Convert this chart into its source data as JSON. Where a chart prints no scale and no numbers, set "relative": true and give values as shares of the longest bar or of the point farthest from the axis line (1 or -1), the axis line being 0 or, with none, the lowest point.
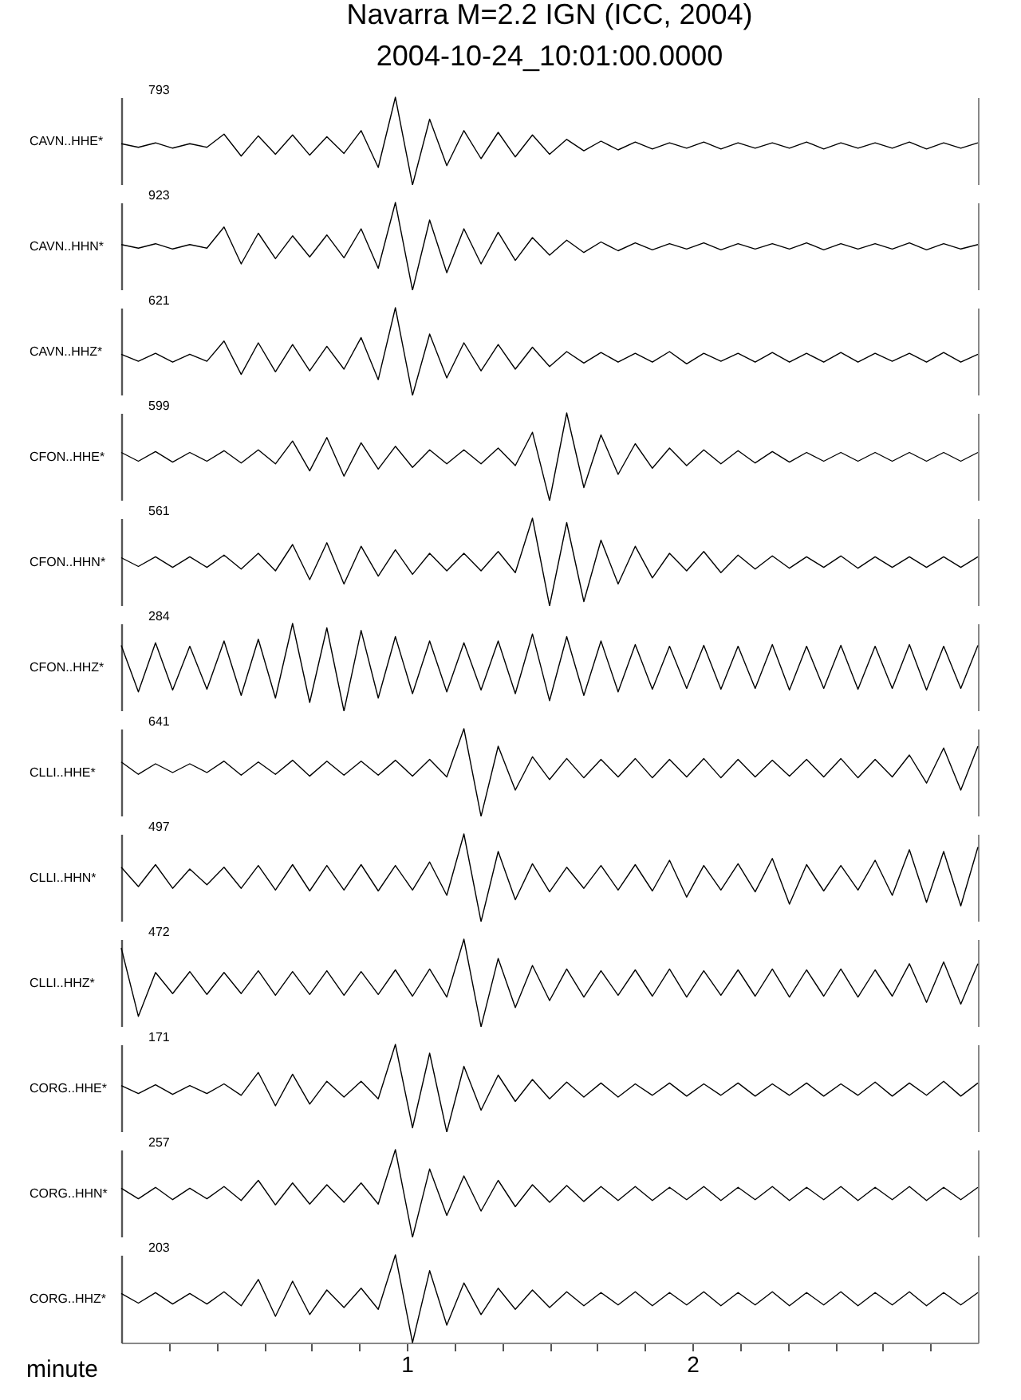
{
  "chart_data": [
    {
      "type": "line",
      "title": "Navarra  M=2.2 IGN (ICC, 2004)",
      "subtitle": "2004-10-24_10:01:00.0000",
      "ylabel": "CAVN..HHE*",
      "annotations": [
        "793"
      ],
      "relative": true,
      "xlim": [
        0,
        3
      ],
      "tick_labels": false,
      "x": [
        0,
        0.06,
        0.12,
        0.18,
        0.24,
        0.3,
        0.36,
        0.42,
        0.48,
        0.54,
        0.6,
        0.66,
        0.72,
        0.78,
        0.84,
        0.9,
        0.96,
        1.02,
        1.08,
        1.14,
        1.2,
        1.26,
        1.32,
        1.38,
        1.44,
        1.5,
        1.56,
        1.62,
        1.68,
        1.74,
        1.8,
        1.86,
        1.92,
        1.98,
        2.04,
        2.1,
        2.16,
        2.22,
        2.28,
        2.34,
        2.4,
        2.46,
        2.52,
        2.58,
        2.64,
        2.7,
        2.76,
        2.82,
        2.88,
        2.94,
        3
      ],
      "series": [
        {
          "color": "#000000",
          "values": [
            0.47,
            0.43,
            0.48,
            0.42,
            0.47,
            0.43,
            0.58,
            0.33,
            0.56,
            0.35,
            0.57,
            0.34,
            0.55,
            0.36,
            0.62,
            0.2,
            1,
            0,
            0.75,
            0.22,
            0.62,
            0.3,
            0.6,
            0.32,
            0.57,
            0.35,
            0.52,
            0.39,
            0.5,
            0.4,
            0.49,
            0.41,
            0.48,
            0.42,
            0.49,
            0.41,
            0.48,
            0.42,
            0.48,
            0.42,
            0.49,
            0.41,
            0.48,
            0.42,
            0.48,
            0.42,
            0.49,
            0.41,
            0.48,
            0.42,
            0.48
          ]
        }
      ]
    },
    {
      "type": "line",
      "ylabel": "CAVN..HHN*",
      "annotations": [
        "923"
      ],
      "relative": true,
      "xlim": [
        0,
        3
      ],
      "tick_labels": false,
      "x": [
        0,
        0.06,
        0.12,
        0.18,
        0.24,
        0.3,
        0.36,
        0.42,
        0.48,
        0.54,
        0.6,
        0.66,
        0.72,
        0.78,
        0.84,
        0.9,
        0.96,
        1.02,
        1.08,
        1.14,
        1.2,
        1.26,
        1.32,
        1.38,
        1.44,
        1.5,
        1.56,
        1.62,
        1.68,
        1.74,
        1.8,
        1.86,
        1.92,
        1.98,
        2.04,
        2.1,
        2.16,
        2.22,
        2.28,
        2.34,
        2.4,
        2.46,
        2.52,
        2.58,
        2.64,
        2.7,
        2.76,
        2.82,
        2.88,
        2.94,
        3
      ],
      "series": [
        {
          "color": "#000000",
          "values": [
            0.52,
            0.48,
            0.53,
            0.47,
            0.52,
            0.48,
            0.72,
            0.3,
            0.65,
            0.36,
            0.62,
            0.38,
            0.63,
            0.37,
            0.7,
            0.25,
            1,
            0,
            0.8,
            0.2,
            0.7,
            0.3,
            0.66,
            0.34,
            0.6,
            0.4,
            0.57,
            0.43,
            0.55,
            0.45,
            0.54,
            0.46,
            0.53,
            0.47,
            0.54,
            0.46,
            0.53,
            0.47,
            0.53,
            0.47,
            0.54,
            0.46,
            0.53,
            0.47,
            0.53,
            0.47,
            0.54,
            0.46,
            0.53,
            0.47,
            0.52
          ]
        }
      ]
    },
    {
      "type": "line",
      "ylabel": "CAVN..HHZ*",
      "annotations": [
        "621"
      ],
      "relative": true,
      "xlim": [
        0,
        3
      ],
      "tick_labels": false,
      "x": [
        0,
        0.06,
        0.12,
        0.18,
        0.24,
        0.3,
        0.36,
        0.42,
        0.48,
        0.54,
        0.6,
        0.66,
        0.72,
        0.78,
        0.84,
        0.9,
        0.96,
        1.02,
        1.08,
        1.14,
        1.2,
        1.26,
        1.32,
        1.38,
        1.44,
        1.5,
        1.56,
        1.62,
        1.68,
        1.74,
        1.8,
        1.86,
        1.92,
        1.98,
        2.04,
        2.1,
        2.16,
        2.22,
        2.28,
        2.34,
        2.4,
        2.46,
        2.52,
        2.58,
        2.64,
        2.7,
        2.76,
        2.82,
        2.88,
        2.94,
        3
      ],
      "series": [
        {
          "color": "#000000",
          "values": [
            0.47,
            0.39,
            0.48,
            0.38,
            0.47,
            0.39,
            0.62,
            0.24,
            0.6,
            0.27,
            0.58,
            0.28,
            0.56,
            0.3,
            0.66,
            0.18,
            1,
            0,
            0.7,
            0.2,
            0.6,
            0.28,
            0.58,
            0.3,
            0.55,
            0.33,
            0.5,
            0.37,
            0.49,
            0.38,
            0.48,
            0.38,
            0.5,
            0.36,
            0.48,
            0.39,
            0.48,
            0.38,
            0.49,
            0.38,
            0.48,
            0.38,
            0.49,
            0.38,
            0.48,
            0.39,
            0.48,
            0.38,
            0.49,
            0.38,
            0.47
          ]
        }
      ]
    },
    {
      "type": "line",
      "ylabel": "CFON..HHE*",
      "annotations": [
        "599"
      ],
      "relative": true,
      "xlim": [
        0,
        3
      ],
      "tick_labels": false,
      "x": [
        0,
        0.06,
        0.12,
        0.18,
        0.24,
        0.3,
        0.36,
        0.42,
        0.48,
        0.54,
        0.6,
        0.66,
        0.72,
        0.78,
        0.84,
        0.9,
        0.96,
        1.02,
        1.08,
        1.14,
        1.2,
        1.26,
        1.32,
        1.38,
        1.44,
        1.5,
        1.56,
        1.62,
        1.68,
        1.74,
        1.8,
        1.86,
        1.92,
        1.98,
        2.04,
        2.1,
        2.16,
        2.22,
        2.28,
        2.34,
        2.4,
        2.46,
        2.52,
        2.58,
        2.64,
        2.7,
        2.76,
        2.82,
        2.88,
        2.94,
        3
      ],
      "series": [
        {
          "color": "#000000",
          "values": [
            0.55,
            0.45,
            0.56,
            0.44,
            0.55,
            0.45,
            0.57,
            0.43,
            0.58,
            0.42,
            0.68,
            0.34,
            0.72,
            0.28,
            0.66,
            0.36,
            0.62,
            0.38,
            0.58,
            0.42,
            0.58,
            0.42,
            0.6,
            0.4,
            0.78,
            0,
            1,
            0.15,
            0.75,
            0.3,
            0.65,
            0.37,
            0.6,
            0.4,
            0.58,
            0.42,
            0.57,
            0.43,
            0.56,
            0.44,
            0.55,
            0.45,
            0.55,
            0.45,
            0.55,
            0.45,
            0.55,
            0.45,
            0.55,
            0.45,
            0.55
          ]
        }
      ]
    },
    {
      "type": "line",
      "ylabel": "CFON..HHN*",
      "annotations": [
        "561"
      ],
      "relative": true,
      "xlim": [
        0,
        3
      ],
      "tick_labels": false,
      "x": [
        0,
        0.06,
        0.12,
        0.18,
        0.24,
        0.3,
        0.36,
        0.42,
        0.48,
        0.54,
        0.6,
        0.66,
        0.72,
        0.78,
        0.84,
        0.9,
        0.96,
        1.02,
        1.08,
        1.14,
        1.2,
        1.26,
        1.32,
        1.38,
        1.44,
        1.5,
        1.56,
        1.62,
        1.68,
        1.74,
        1.8,
        1.86,
        1.92,
        1.98,
        2.04,
        2.1,
        2.16,
        2.22,
        2.28,
        2.34,
        2.4,
        2.46,
        2.52,
        2.58,
        2.64,
        2.7,
        2.76,
        2.82,
        2.88,
        2.94,
        3
      ],
      "series": [
        {
          "color": "#000000",
          "values": [
            0.55,
            0.45,
            0.56,
            0.44,
            0.56,
            0.44,
            0.58,
            0.42,
            0.6,
            0.4,
            0.7,
            0.3,
            0.72,
            0.25,
            0.68,
            0.34,
            0.64,
            0.36,
            0.6,
            0.4,
            0.6,
            0.4,
            0.62,
            0.38,
            1,
            0,
            0.95,
            0.05,
            0.75,
            0.25,
            0.68,
            0.32,
            0.6,
            0.4,
            0.62,
            0.38,
            0.58,
            0.42,
            0.57,
            0.43,
            0.56,
            0.44,
            0.57,
            0.43,
            0.56,
            0.44,
            0.56,
            0.44,
            0.56,
            0.44,
            0.56
          ]
        }
      ]
    },
    {
      "type": "line",
      "ylabel": "CFON..HHZ*",
      "annotations": [
        "284"
      ],
      "relative": true,
      "xlim": [
        0,
        3
      ],
      "tick_labels": false,
      "x": [
        0,
        0.06,
        0.12,
        0.18,
        0.24,
        0.3,
        0.36,
        0.42,
        0.48,
        0.54,
        0.6,
        0.66,
        0.72,
        0.78,
        0.84,
        0.9,
        0.96,
        1.02,
        1.08,
        1.14,
        1.2,
        1.26,
        1.32,
        1.38,
        1.44,
        1.5,
        1.56,
        1.62,
        1.68,
        1.74,
        1.8,
        1.86,
        1.92,
        1.98,
        2.04,
        2.1,
        2.16,
        2.22,
        2.28,
        2.34,
        2.4,
        2.46,
        2.52,
        2.58,
        2.64,
        2.7,
        2.76,
        2.82,
        2.88,
        2.94,
        3
      ],
      "series": [
        {
          "color": "#000000",
          "values": [
            0.75,
            0.22,
            0.78,
            0.24,
            0.74,
            0.25,
            0.8,
            0.18,
            0.82,
            0.15,
            1,
            0.1,
            0.95,
            0,
            0.92,
            0.15,
            0.85,
            0.2,
            0.8,
            0.22,
            0.78,
            0.24,
            0.8,
            0.2,
            0.88,
            0.12,
            0.85,
            0.18,
            0.8,
            0.22,
            0.76,
            0.25,
            0.74,
            0.26,
            0.75,
            0.25,
            0.74,
            0.26,
            0.76,
            0.24,
            0.74,
            0.26,
            0.75,
            0.25,
            0.74,
            0.26,
            0.76,
            0.24,
            0.74,
            0.26,
            0.75
          ]
        }
      ]
    },
    {
      "type": "line",
      "ylabel": "CLLI..HHE*",
      "annotations": [
        "641"
      ],
      "relative": true,
      "xlim": [
        0,
        3
      ],
      "tick_labels": false,
      "x": [
        0,
        0.06,
        0.12,
        0.18,
        0.24,
        0.3,
        0.36,
        0.42,
        0.48,
        0.54,
        0.6,
        0.66,
        0.72,
        0.78,
        0.84,
        0.9,
        0.96,
        1.02,
        1.08,
        1.14,
        1.2,
        1.26,
        1.32,
        1.38,
        1.44,
        1.5,
        1.56,
        1.62,
        1.68,
        1.74,
        1.8,
        1.86,
        1.92,
        1.98,
        2.04,
        2.1,
        2.16,
        2.22,
        2.28,
        2.34,
        2.4,
        2.46,
        2.52,
        2.58,
        2.64,
        2.7,
        2.76,
        2.82,
        2.88,
        2.94,
        3
      ],
      "series": [
        {
          "color": "#000000",
          "values": [
            0.62,
            0.48,
            0.6,
            0.5,
            0.6,
            0.5,
            0.63,
            0.47,
            0.62,
            0.48,
            0.64,
            0.46,
            0.63,
            0.47,
            0.63,
            0.47,
            0.64,
            0.46,
            0.65,
            0.45,
            1,
            0,
            0.8,
            0.3,
            0.68,
            0.42,
            0.66,
            0.44,
            0.65,
            0.45,
            0.66,
            0.44,
            0.65,
            0.45,
            0.66,
            0.44,
            0.65,
            0.45,
            0.64,
            0.46,
            0.65,
            0.45,
            0.66,
            0.44,
            0.65,
            0.45,
            0.7,
            0.38,
            0.78,
            0.3,
            0.8
          ]
        }
      ]
    },
    {
      "type": "line",
      "ylabel": "CLLI..HHN*",
      "annotations": [
        "497"
      ],
      "relative": true,
      "xlim": [
        0,
        3
      ],
      "tick_labels": false,
      "x": [
        0,
        0.06,
        0.12,
        0.18,
        0.24,
        0.3,
        0.36,
        0.42,
        0.48,
        0.54,
        0.6,
        0.66,
        0.72,
        0.78,
        0.84,
        0.9,
        0.96,
        1.02,
        1.08,
        1.14,
        1.2,
        1.26,
        1.32,
        1.38,
        1.44,
        1.5,
        1.56,
        1.62,
        1.68,
        1.74,
        1.8,
        1.86,
        1.92,
        1.98,
        2.04,
        2.1,
        2.16,
        2.22,
        2.28,
        2.34,
        2.4,
        2.46,
        2.52,
        2.58,
        2.64,
        2.7,
        2.76,
        2.82,
        2.88,
        2.94,
        3
      ],
      "series": [
        {
          "color": "#000000",
          "values": [
            0.62,
            0.4,
            0.65,
            0.38,
            0.6,
            0.42,
            0.62,
            0.38,
            0.64,
            0.36,
            0.65,
            0.35,
            0.64,
            0.36,
            0.65,
            0.35,
            0.64,
            0.36,
            0.68,
            0.3,
            1,
            0,
            0.8,
            0.25,
            0.66,
            0.34,
            0.62,
            0.38,
            0.64,
            0.36,
            0.65,
            0.35,
            0.7,
            0.28,
            0.64,
            0.36,
            0.66,
            0.34,
            0.72,
            0.2,
            0.65,
            0.35,
            0.64,
            0.36,
            0.7,
            0.3,
            0.82,
            0.22,
            0.8,
            0.18,
            0.85
          ]
        }
      ]
    },
    {
      "type": "line",
      "ylabel": "CLLI..HHZ*",
      "annotations": [
        "472"
      ],
      "relative": true,
      "xlim": [
        0,
        3
      ],
      "tick_labels": false,
      "x": [
        0,
        0.06,
        0.12,
        0.18,
        0.24,
        0.3,
        0.36,
        0.42,
        0.48,
        0.54,
        0.6,
        0.66,
        0.72,
        0.78,
        0.84,
        0.9,
        0.96,
        1.02,
        1.08,
        1.14,
        1.2,
        1.26,
        1.32,
        1.38,
        1.44,
        1.5,
        1.56,
        1.62,
        1.68,
        1.74,
        1.8,
        1.86,
        1.92,
        1.98,
        2.04,
        2.1,
        2.16,
        2.22,
        2.28,
        2.34,
        2.4,
        2.46,
        2.52,
        2.58,
        2.64,
        2.7,
        2.76,
        2.82,
        2.88,
        2.94,
        3
      ],
      "series": [
        {
          "color": "#000000",
          "values": [
            0.9,
            0.12,
            0.62,
            0.38,
            0.63,
            0.37,
            0.62,
            0.38,
            0.64,
            0.36,
            0.63,
            0.37,
            0.64,
            0.36,
            0.63,
            0.37,
            0.65,
            0.35,
            0.66,
            0.34,
            1,
            0,
            0.78,
            0.22,
            0.7,
            0.3,
            0.66,
            0.34,
            0.64,
            0.36,
            0.65,
            0.35,
            0.66,
            0.34,
            0.64,
            0.36,
            0.65,
            0.35,
            0.66,
            0.34,
            0.65,
            0.35,
            0.66,
            0.34,
            0.65,
            0.35,
            0.72,
            0.28,
            0.74,
            0.26,
            0.72
          ]
        }
      ]
    },
    {
      "type": "line",
      "ylabel": "CORG..HHE*",
      "annotations": [
        "171"
      ],
      "relative": true,
      "xlim": [
        0,
        3
      ],
      "tick_labels": false,
      "x": [
        0,
        0.06,
        0.12,
        0.18,
        0.24,
        0.3,
        0.36,
        0.42,
        0.48,
        0.54,
        0.6,
        0.66,
        0.72,
        0.78,
        0.84,
        0.9,
        0.96,
        1.02,
        1.08,
        1.14,
        1.2,
        1.26,
        1.32,
        1.38,
        1.44,
        1.5,
        1.56,
        1.62,
        1.68,
        1.74,
        1.8,
        1.86,
        1.92,
        1.98,
        2.04,
        2.1,
        2.16,
        2.22,
        2.28,
        2.34,
        2.4,
        2.46,
        2.52,
        2.58,
        2.64,
        2.7,
        2.76,
        2.82,
        2.88,
        2.94,
        3
      ],
      "series": [
        {
          "color": "#000000",
          "values": [
            0.53,
            0.44,
            0.54,
            0.43,
            0.53,
            0.44,
            0.55,
            0.42,
            0.68,
            0.3,
            0.66,
            0.32,
            0.58,
            0.4,
            0.58,
            0.38,
            1,
            0.05,
            0.9,
            0,
            0.75,
            0.25,
            0.65,
            0.35,
            0.6,
            0.38,
            0.57,
            0.4,
            0.56,
            0.4,
            0.55,
            0.42,
            0.56,
            0.41,
            0.55,
            0.42,
            0.56,
            0.41,
            0.55,
            0.42,
            0.56,
            0.41,
            0.55,
            0.42,
            0.57,
            0.41,
            0.56,
            0.42,
            0.58,
            0.41,
            0.56
          ]
        }
      ]
    },
    {
      "type": "line",
      "ylabel": "CORG..HHN*",
      "annotations": [
        "257"
      ],
      "relative": true,
      "xlim": [
        0,
        3
      ],
      "tick_labels": false,
      "x": [
        0,
        0.06,
        0.12,
        0.18,
        0.24,
        0.3,
        0.36,
        0.42,
        0.48,
        0.54,
        0.6,
        0.66,
        0.72,
        0.78,
        0.84,
        0.9,
        0.96,
        1.02,
        1.08,
        1.14,
        1.2,
        1.26,
        1.32,
        1.38,
        1.44,
        1.5,
        1.56,
        1.62,
        1.68,
        1.74,
        1.8,
        1.86,
        1.92,
        1.98,
        2.04,
        2.1,
        2.16,
        2.22,
        2.28,
        2.34,
        2.4,
        2.46,
        2.52,
        2.58,
        2.64,
        2.7,
        2.76,
        2.82,
        2.88,
        2.94,
        3
      ],
      "series": [
        {
          "color": "#000000",
          "values": [
            0.56,
            0.44,
            0.57,
            0.43,
            0.56,
            0.44,
            0.58,
            0.42,
            0.65,
            0.37,
            0.62,
            0.38,
            0.6,
            0.4,
            0.62,
            0.38,
            1,
            0,
            0.78,
            0.25,
            0.7,
            0.3,
            0.65,
            0.35,
            0.6,
            0.4,
            0.59,
            0.41,
            0.58,
            0.42,
            0.58,
            0.42,
            0.57,
            0.43,
            0.58,
            0.42,
            0.57,
            0.43,
            0.58,
            0.42,
            0.57,
            0.43,
            0.58,
            0.42,
            0.57,
            0.43,
            0.58,
            0.42,
            0.57,
            0.43,
            0.57
          ]
        }
      ]
    },
    {
      "type": "line",
      "ylabel": "CORG..HHZ*",
      "xlabel": "minute",
      "annotations": [
        "203"
      ],
      "relative": true,
      "xlim": [
        0,
        3
      ],
      "tick_labels": "x",
      "xticks": [
        {
          "value": 0.1667,
          "label": null
        },
        {
          "value": 0.3333,
          "label": null
        },
        {
          "value": 0.5,
          "label": null
        },
        {
          "value": 0.6667,
          "label": null
        },
        {
          "value": 0.8333,
          "label": null
        },
        1,
        {
          "value": 1.1667,
          "label": null
        },
        {
          "value": 1.3333,
          "label": null
        },
        {
          "value": 1.5,
          "label": null
        },
        {
          "value": 1.6667,
          "label": null
        },
        {
          "value": 1.8333,
          "label": null
        },
        2,
        {
          "value": 2.1667,
          "label": null
        },
        {
          "value": 2.3333,
          "label": null
        },
        {
          "value": 2.5,
          "label": null
        },
        {
          "value": 2.6667,
          "label": null
        },
        {
          "value": 2.8333,
          "label": null
        }
      ],
      "x": [
        0,
        0.06,
        0.12,
        0.18,
        0.24,
        0.3,
        0.36,
        0.42,
        0.48,
        0.54,
        0.6,
        0.66,
        0.72,
        0.78,
        0.84,
        0.9,
        0.96,
        1.02,
        1.08,
        1.14,
        1.2,
        1.26,
        1.32,
        1.38,
        1.44,
        1.5,
        1.56,
        1.62,
        1.68,
        1.74,
        1.8,
        1.86,
        1.92,
        1.98,
        2.04,
        2.1,
        2.16,
        2.22,
        2.28,
        2.34,
        2.4,
        2.46,
        2.52,
        2.58,
        2.64,
        2.7,
        2.76,
        2.82,
        2.88,
        2.94,
        3
      ],
      "series": [
        {
          "color": "#000000",
          "values": [
            0.56,
            0.45,
            0.57,
            0.44,
            0.56,
            0.44,
            0.58,
            0.42,
            0.72,
            0.3,
            0.7,
            0.32,
            0.6,
            0.4,
            0.62,
            0.38,
            1,
            0,
            0.82,
            0.2,
            0.68,
            0.32,
            0.62,
            0.38,
            0.6,
            0.4,
            0.58,
            0.42,
            0.57,
            0.43,
            0.58,
            0.42,
            0.57,
            0.43,
            0.58,
            0.42,
            0.57,
            0.43,
            0.58,
            0.42,
            0.57,
            0.43,
            0.58,
            0.42,
            0.57,
            0.43,
            0.58,
            0.42,
            0.57,
            0.43,
            0.57
          ]
        }
      ]
    }
  ]
}
